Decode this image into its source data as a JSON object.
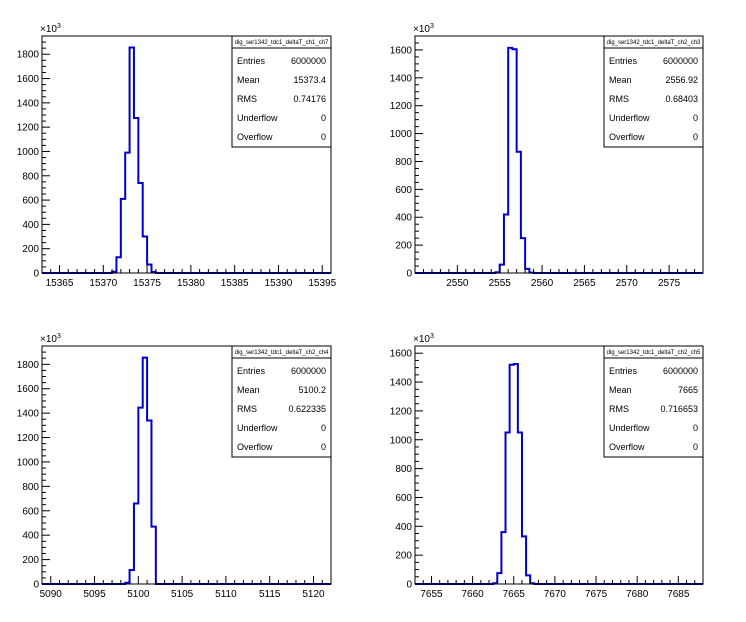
{
  "chart_data": [
    {
      "type": "histogram",
      "title": "dig_ser1342_tdc1_deltaT_ch1_ch7",
      "y_multiplier": "×10",
      "y_multiplier_exp": "3",
      "xlim": [
        15363,
        15396
      ],
      "ylim": [
        0,
        1950
      ],
      "x_ticks": [
        15365,
        15370,
        15375,
        15380,
        15385,
        15390,
        15395
      ],
      "y_ticks": [
        0,
        200,
        400,
        600,
        800,
        1000,
        1200,
        1400,
        1600,
        1800
      ],
      "bin_width": 0.5,
      "bins_x_low": [
        15371.0,
        15371.5,
        15372.0,
        15372.5,
        15373.0,
        15373.5,
        15374.0,
        15374.5,
        15375.0,
        15375.5
      ],
      "bins_y": [
        10,
        130,
        610,
        990,
        1855,
        1275,
        740,
        300,
        70,
        8
      ],
      "stats": {
        "Entries": "6000000",
        "Mean": "15373.4",
        "RMS": "0.74176",
        "Underflow": "0",
        "Overflow": "0"
      }
    },
    {
      "type": "histogram",
      "title": "dig_ser1342_tdc1_deltaT_ch2_ch3",
      "y_multiplier": "×10",
      "y_multiplier_exp": "3",
      "xlim": [
        2545,
        2579
      ],
      "ylim": [
        0,
        1700
      ],
      "x_ticks": [
        2550,
        2555,
        2560,
        2565,
        2570,
        2575
      ],
      "y_ticks": [
        0,
        200,
        400,
        600,
        800,
        1000,
        1200,
        1400,
        1600
      ],
      "bin_width": 0.5,
      "bins_x_low": [
        2554.5,
        2555.0,
        2555.5,
        2556.0,
        2556.5,
        2557.0,
        2557.5,
        2558.0,
        2558.5
      ],
      "bins_y": [
        5,
        60,
        420,
        1615,
        1605,
        870,
        250,
        30,
        3
      ],
      "stats": {
        "Entries": "6000000",
        "Mean": "2556.92",
        "RMS": "0.68403",
        "Underflow": "0",
        "Overflow": "0"
      }
    },
    {
      "type": "histogram",
      "title": "dig_ser1342_tdc1_deltaT_ch2_ch4",
      "y_multiplier": "×10",
      "y_multiplier_exp": "3",
      "xlim": [
        5089,
        5122
      ],
      "ylim": [
        0,
        1950
      ],
      "x_ticks": [
        5090,
        5095,
        5100,
        5105,
        5110,
        5115,
        5120
      ],
      "y_ticks": [
        0,
        200,
        400,
        600,
        800,
        1000,
        1200,
        1400,
        1600,
        1800
      ],
      "bin_width": 0.5,
      "bins_x_low": [
        5098.5,
        5099.0,
        5099.5,
        5100.0,
        5100.5,
        5101.0,
        5101.5
      ],
      "bins_y": [
        10,
        115,
        660,
        1445,
        1855,
        1340,
        470
      ],
      "stats": {
        "Entries": "6000000",
        "Mean": "5100.2",
        "RMS": "0.622335",
        "Underflow": "0",
        "Overflow": "0"
      }
    },
    {
      "type": "histogram",
      "title": "dig_ser1342_tdc1_deltaT_ch2_ch5",
      "y_multiplier": "×10",
      "y_multiplier_exp": "3",
      "xlim": [
        7653,
        7688
      ],
      "ylim": [
        0,
        1650
      ],
      "x_ticks": [
        7655,
        7660,
        7665,
        7670,
        7675,
        7680,
        7685
      ],
      "y_ticks": [
        0,
        200,
        400,
        600,
        800,
        1000,
        1200,
        1400,
        1600
      ],
      "bin_width": 0.5,
      "bins_x_low": [
        7662.5,
        7663.0,
        7663.5,
        7664.0,
        7664.5,
        7665.0,
        7665.5,
        7666.0,
        7666.5,
        7667.0
      ],
      "bins_y": [
        5,
        75,
        360,
        1050,
        1520,
        1525,
        1050,
        330,
        60,
        5
      ],
      "stats": {
        "Entries": "6000000",
        "Mean": "7665",
        "RMS": "0.716653",
        "Underflow": "0",
        "Overflow": "0"
      }
    }
  ]
}
